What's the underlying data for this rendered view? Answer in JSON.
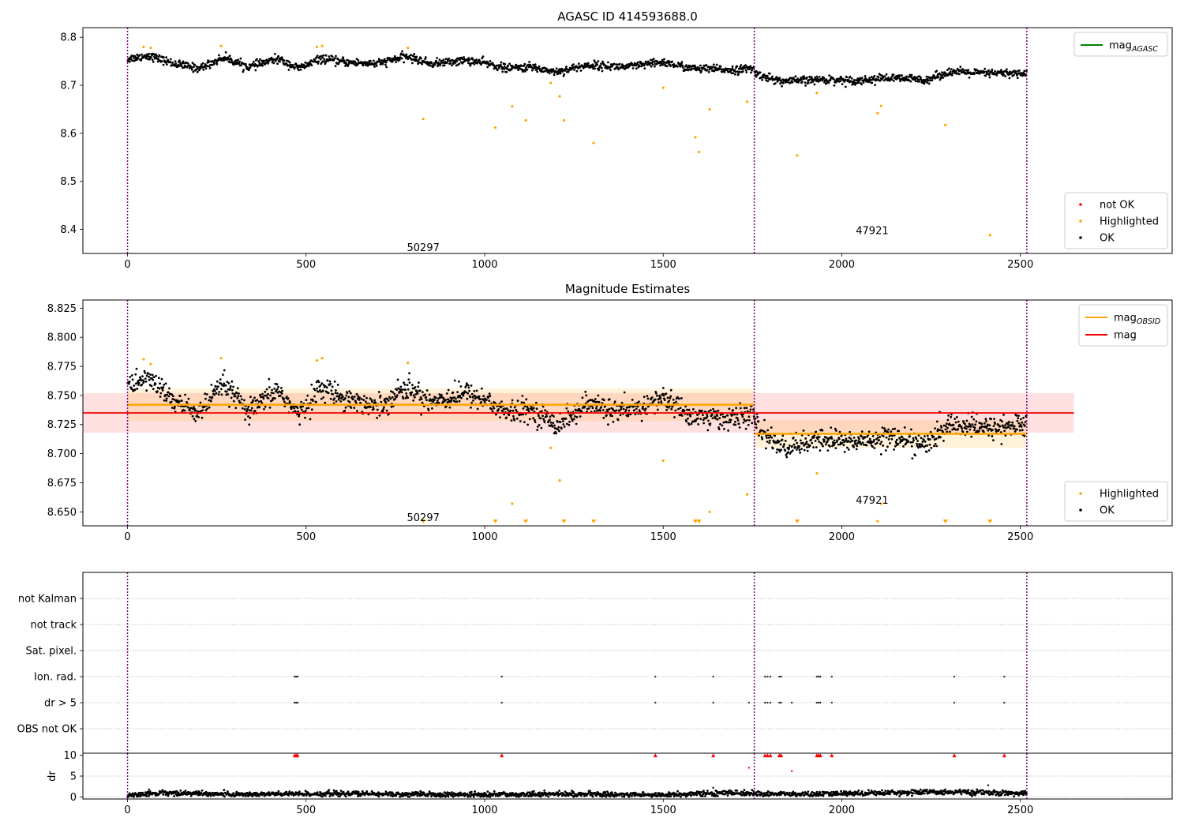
{
  "colors": {
    "ok": "#000000",
    "highlighted": "#ffa500",
    "not_ok": "#ff0000",
    "mag_agasc": "#008000",
    "mag_obsid": "#ffa500",
    "mag": "#ff0000",
    "obsid_divider": "#800080",
    "grid": "#b0b0b0"
  },
  "chart_data": [
    {
      "type": "scatter",
      "title": "AGASC ID 414593688.0",
      "xlim": [
        -125,
        2925
      ],
      "ylim": [
        8.35,
        8.82
      ],
      "xticks": [
        0,
        500,
        1000,
        1500,
        2000,
        2500
      ],
      "yticks": [
        8.4,
        8.5,
        8.6,
        8.7,
        8.8
      ],
      "xtick_labels": [
        "0",
        "500",
        "1000",
        "1500",
        "2000",
        "2500"
      ],
      "ytick_labels": [
        "8.4",
        "8.5",
        "8.6",
        "8.7",
        "8.8"
      ],
      "obsid_boundaries": [
        0,
        1755,
        2518
      ],
      "obsid_labels": [
        {
          "text": "50297",
          "x": 828,
          "y": 8.355
        },
        {
          "text": "47921",
          "x": 2085,
          "y": 8.39
        }
      ],
      "legend_lines": {
        "placement": "top-right",
        "entries": [
          {
            "label": "mag",
            "sub": "AGASC",
            "color_key": "mag_agasc"
          }
        ]
      },
      "legend_points": {
        "placement": "bottom-right",
        "entries": [
          {
            "label": "not OK",
            "color_key": "not_ok"
          },
          {
            "label": "Highlighted",
            "color_key": "highlighted"
          },
          {
            "label": "OK",
            "color_key": "ok"
          }
        ]
      },
      "ok_segments": [
        {
          "x0": 0,
          "x1": 1755,
          "trend": [
            [
              0,
              8.755
            ],
            [
              60,
              8.762
            ],
            [
              130,
              8.745
            ],
            [
              200,
              8.735
            ],
            [
              270,
              8.758
            ],
            [
              340,
              8.738
            ],
            [
              420,
              8.755
            ],
            [
              480,
              8.735
            ],
            [
              540,
              8.755
            ],
            [
              610,
              8.748
            ],
            [
              700,
              8.745
            ],
            [
              780,
              8.76
            ],
            [
              850,
              8.745
            ],
            [
              950,
              8.752
            ],
            [
              1010,
              8.745
            ],
            [
              1060,
              8.735
            ],
            [
              1130,
              8.738
            ],
            [
              1200,
              8.728
            ],
            [
              1290,
              8.742
            ],
            [
              1400,
              8.738
            ],
            [
              1500,
              8.748
            ],
            [
              1580,
              8.735
            ],
            [
              1700,
              8.732
            ],
            [
              1755,
              8.735
            ]
          ],
          "noise": 0.007
        },
        {
          "x0": 1755,
          "x1": 2518,
          "trend": [
            [
              1755,
              8.725
            ],
            [
              1830,
              8.708
            ],
            [
              1950,
              8.712
            ],
            [
              2050,
              8.71
            ],
            [
              2120,
              8.715
            ],
            [
              2240,
              8.712
            ],
            [
              2300,
              8.728
            ],
            [
              2400,
              8.725
            ],
            [
              2518,
              8.725
            ]
          ],
          "noise": 0.007
        }
      ],
      "highlighted_points": [
        [
          45,
          8.78
        ],
        [
          65,
          8.778
        ],
        [
          262,
          8.782
        ],
        [
          530,
          8.78
        ],
        [
          545,
          8.782
        ],
        [
          785,
          8.778
        ],
        [
          828,
          8.63
        ],
        [
          1030,
          8.612
        ],
        [
          1077,
          8.656
        ],
        [
          1115,
          8.627
        ],
        [
          1185,
          8.705
        ],
        [
          1210,
          8.677
        ],
        [
          1222,
          8.627
        ],
        [
          1305,
          8.58
        ],
        [
          1500,
          8.695
        ],
        [
          1590,
          8.592
        ],
        [
          1600,
          8.561
        ],
        [
          1630,
          8.65
        ],
        [
          1735,
          8.666
        ],
        [
          1875,
          8.554
        ],
        [
          1930,
          8.684
        ],
        [
          2100,
          8.642
        ],
        [
          2110,
          8.657
        ],
        [
          2290,
          8.617
        ],
        [
          2415,
          8.388
        ]
      ]
    },
    {
      "type": "scatter",
      "title": "Magnitude Estimates",
      "xlim": [
        -125,
        2925
      ],
      "ylim": [
        8.638,
        8.832
      ],
      "xticks": [
        0,
        500,
        1000,
        1500,
        2000,
        2500
      ],
      "yticks": [
        8.65,
        8.675,
        8.7,
        8.725,
        8.75,
        8.775,
        8.8,
        8.825
      ],
      "xtick_labels": [
        "0",
        "500",
        "1000",
        "1500",
        "2000",
        "2500"
      ],
      "ytick_labels": [
        "8.650",
        "8.675",
        "8.700",
        "8.725",
        "8.750",
        "8.775",
        "8.800",
        "8.825"
      ],
      "obsid_boundaries": [
        0,
        1755,
        2518
      ],
      "obsid_labels": [
        {
          "text": "50297",
          "x": 828,
          "y": 8.642
        },
        {
          "text": "47921",
          "x": 2085,
          "y": 8.657
        }
      ],
      "mag": {
        "value": 8.735,
        "band": [
          8.718,
          8.752
        ],
        "x_range": [
          -125,
          2650
        ]
      },
      "mag_obsid": [
        {
          "x0": 0,
          "x1": 1755,
          "value": 8.742,
          "band": [
            8.728,
            8.756
          ]
        },
        {
          "x0": 1755,
          "x1": 2518,
          "value": 8.717,
          "band": [
            8.705,
            8.729
          ]
        }
      ],
      "legend_lines": {
        "placement": "top-right",
        "entries": [
          {
            "label": "mag",
            "sub": "OBSID",
            "color_key": "mag_obsid"
          },
          {
            "label": "mag",
            "sub": "",
            "color_key": "mag"
          }
        ]
      },
      "legend_points": {
        "placement": "bottom-right",
        "entries": [
          {
            "label": "Highlighted",
            "color_key": "highlighted"
          },
          {
            "label": "OK",
            "color_key": "ok"
          }
        ]
      },
      "ok_segments": [
        {
          "x0": 0,
          "x1": 1755,
          "trend": [
            [
              0,
              8.758
            ],
            [
              60,
              8.765
            ],
            [
              130,
              8.745
            ],
            [
              200,
              8.735
            ],
            [
              270,
              8.76
            ],
            [
              340,
              8.735
            ],
            [
              420,
              8.755
            ],
            [
              480,
              8.733
            ],
            [
              540,
              8.757
            ],
            [
              610,
              8.748
            ],
            [
              700,
              8.74
            ],
            [
              780,
              8.757
            ],
            [
              850,
              8.745
            ],
            [
              950,
              8.752
            ],
            [
              1010,
              8.745
            ],
            [
              1060,
              8.735
            ],
            [
              1130,
              8.738
            ],
            [
              1200,
              8.725
            ],
            [
              1290,
              8.742
            ],
            [
              1400,
              8.735
            ],
            [
              1500,
              8.748
            ],
            [
              1580,
              8.732
            ],
            [
              1700,
              8.73
            ],
            [
              1755,
              8.735
            ]
          ],
          "noise": 0.008
        },
        {
          "x0": 1755,
          "x1": 2518,
          "trend": [
            [
              1755,
              8.725
            ],
            [
              1830,
              8.705
            ],
            [
              1950,
              8.712
            ],
            [
              2050,
              8.71
            ],
            [
              2120,
              8.715
            ],
            [
              2240,
              8.708
            ],
            [
              2300,
              8.725
            ],
            [
              2400,
              8.722
            ],
            [
              2518,
              8.725
            ]
          ],
          "noise": 0.008
        }
      ],
      "highlighted_points": [
        [
          45,
          8.781
        ],
        [
          65,
          8.777
        ],
        [
          262,
          8.782
        ],
        [
          530,
          8.78
        ],
        [
          545,
          8.782
        ],
        [
          785,
          8.778
        ],
        [
          1185,
          8.705
        ],
        [
          1210,
          8.677
        ],
        [
          1077,
          8.657
        ],
        [
          1500,
          8.694
        ],
        [
          1630,
          8.65
        ],
        [
          1735,
          8.665
        ],
        [
          1930,
          8.683
        ],
        [
          2100,
          8.642
        ],
        [
          2110,
          8.657
        ]
      ],
      "below_range_markers": [
        828,
        1030,
        1115,
        1222,
        1305,
        1590,
        1600,
        1875,
        2290,
        2415
      ]
    },
    {
      "type": "scatter",
      "title": "",
      "xlim": [
        -125,
        2925
      ],
      "xticks": [
        0,
        500,
        1000,
        1500,
        2000,
        2500
      ],
      "xtick_labels": [
        "0",
        "500",
        "1000",
        "1500",
        "2000",
        "2500"
      ],
      "obsid_boundaries": [
        0,
        1755,
        2518
      ],
      "flag_rows": [
        "not Kalman",
        "not track",
        "Sat. pixel.",
        "Ion. rad.",
        "dr > 5",
        "OBS not OK"
      ],
      "flag_points": {
        "Ion. rad.": [
          468,
          472,
          476,
          1048,
          1478,
          1640,
          1785,
          1792,
          1800,
          1825,
          1830,
          1930,
          1935,
          1940,
          1972,
          2315,
          2455
        ],
        "dr > 5": [
          468,
          472,
          476,
          1048,
          1478,
          1640,
          1740,
          1785,
          1792,
          1800,
          1825,
          1830,
          1860,
          1930,
          1935,
          1940,
          1972,
          2315,
          2455
        ]
      }
    },
    {
      "type": "scatter",
      "title": "",
      "ylabel": "dr",
      "xlim": [
        -125,
        2925
      ],
      "ylim": [
        -0.5,
        10.5
      ],
      "yticks": [
        0,
        5,
        10
      ],
      "ytick_labels": [
        "0",
        "5",
        "10"
      ],
      "xticks": [
        0,
        500,
        1000,
        1500,
        2000,
        2500
      ],
      "xtick_labels": [
        "0",
        "500",
        "1000",
        "1500",
        "2000",
        "2500"
      ],
      "obsid_boundaries": [
        0,
        1755,
        2518
      ],
      "dr_trend": [
        [
          0,
          0.4
        ],
        [
          100,
          1.0
        ],
        [
          300,
          0.6
        ],
        [
          600,
          0.8
        ],
        [
          900,
          0.5
        ],
        [
          1200,
          0.7
        ],
        [
          1500,
          0.5
        ],
        [
          1700,
          1.0
        ],
        [
          1755,
          0.8
        ],
        [
          1900,
          0.6
        ],
        [
          2100,
          1.0
        ],
        [
          2300,
          1.2
        ],
        [
          2518,
          0.8
        ]
      ],
      "dr_noise": 0.3,
      "dr_outliers_black": [
        [
          60,
          1.8
        ],
        [
          1640,
          2.2
        ],
        [
          2410,
          2.8
        ],
        [
          2290,
          1.8
        ]
      ],
      "dr_outliers_red": [
        [
          1740,
          7.0
        ],
        [
          1860,
          6.2
        ]
      ],
      "dr_clipped_red": [
        468,
        472,
        476,
        1048,
        1478,
        1640,
        1785,
        1792,
        1800,
        1825,
        1830,
        1930,
        1935,
        1940,
        1972,
        2315,
        2455
      ]
    }
  ]
}
